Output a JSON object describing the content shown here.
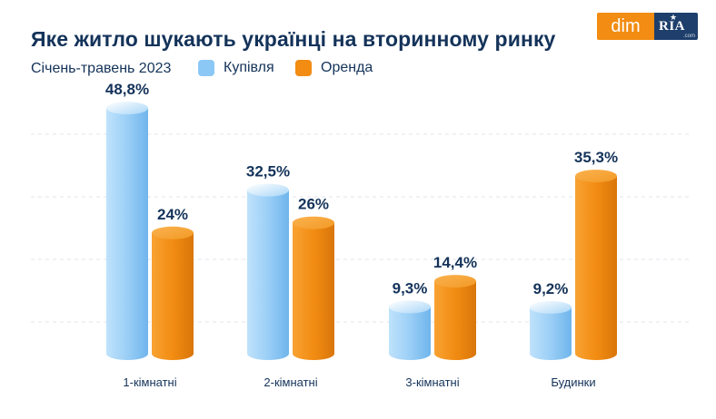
{
  "title": "Яке житло шукають українці на вторинному ринку",
  "subtitle": "Січень-травень 2023",
  "logo": {
    "dim": "dim",
    "ria": "RIA",
    "ria_domain": ".com"
  },
  "colors": {
    "buy": "#8cc8f5",
    "rent": "#f28c12",
    "text": "#14335a",
    "grid": "#dfe5ee"
  },
  "chart_data": {
    "type": "bar",
    "title": "Яке житло шукають українці на вторинному ринку",
    "subtitle": "Січень-травень 2023",
    "categories": [
      "1-кімнатні",
      "2-кімнатні",
      "3-кімнатні",
      "Будинки"
    ],
    "series": [
      {
        "name": "Купівля",
        "values": [
          48.8,
          32.5,
          9.3,
          9.2
        ],
        "labels": [
          "48,8%",
          "32,5%",
          "9,3%",
          "9,2%"
        ]
      },
      {
        "name": "Оренда",
        "values": [
          24,
          26,
          14.4,
          35.3
        ],
        "labels": [
          "24%",
          "26%",
          "14,4%",
          "35,3%"
        ]
      }
    ],
    "unit": "%",
    "ylim": [
      0,
      50
    ],
    "grid": true,
    "legend": "top"
  }
}
